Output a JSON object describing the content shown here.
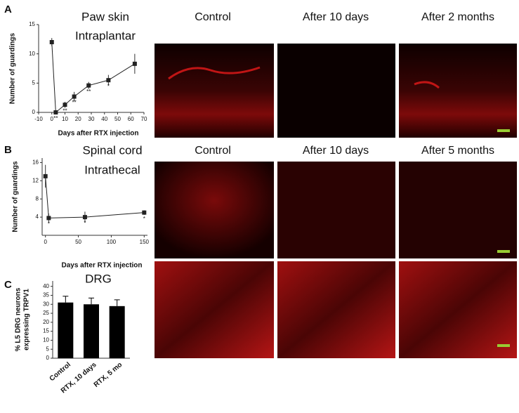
{
  "panel_labels": [
    "A",
    "B",
    "C"
  ],
  "image_headers": [
    [
      "Control",
      "After 10 days",
      "After 2 months"
    ],
    [
      "Control",
      "After 10 days",
      "After 5 months"
    ]
  ],
  "chart_data": [
    {
      "type": "line",
      "title_lines": [
        "Paw skin",
        "Intraplantar"
      ],
      "ylabel": "Number of guardings",
      "xlabel": "Days after RTX injection",
      "x": [
        0,
        3,
        10,
        17,
        28,
        43,
        63
      ],
      "values": [
        12,
        0,
        1.3,
        2.7,
        4.6,
        5.5,
        8.3
      ],
      "errors": [
        0.7,
        0.3,
        0.5,
        0.8,
        0.6,
        0.9,
        1.7
      ],
      "point_labels": [
        null,
        "**",
        "**",
        "**",
        "**",
        "*",
        null
      ],
      "color": "#222",
      "xlim": [
        -10,
        70
      ],
      "xticks": [
        -10,
        0,
        10,
        20,
        30,
        40,
        50,
        60,
        70
      ],
      "ylim": [
        0,
        15
      ],
      "yticks": [
        0,
        5,
        10,
        15
      ]
    },
    {
      "type": "line",
      "title_lines": [
        "Spinal cord",
        "Intrathecal"
      ],
      "ylabel": "Number of  guardings",
      "xlabel": "Days after RTX injection",
      "x": [
        0,
        5,
        60,
        150
      ],
      "values": [
        13,
        3.8,
        4,
        5
      ],
      "errors": [
        2.5,
        1,
        1.2,
        0.5
      ],
      "point_labels": [
        null,
        "*",
        "*",
        "*"
      ],
      "color": "#222",
      "xlim": [
        -5,
        155
      ],
      "xticks": [
        0,
        50,
        100,
        150
      ],
      "ylim": [
        0,
        17
      ],
      "yticks": [
        4,
        8,
        12,
        16
      ]
    },
    {
      "type": "bar",
      "title_lines": [
        "DRG"
      ],
      "ylabel_lines": [
        "% L5 DRG neurons",
        "expressing TRPV1"
      ],
      "categories": [
        "Control",
        "RTX, 10 days",
        "RTX, 5 mo"
      ],
      "values": [
        31,
        30,
        29
      ],
      "errors": [
        3.5,
        3.5,
        3.5
      ],
      "color": "#000",
      "ylim": [
        0,
        43
      ],
      "yticks": [
        0,
        5,
        10,
        15,
        20,
        25,
        30,
        35,
        40
      ]
    }
  ]
}
